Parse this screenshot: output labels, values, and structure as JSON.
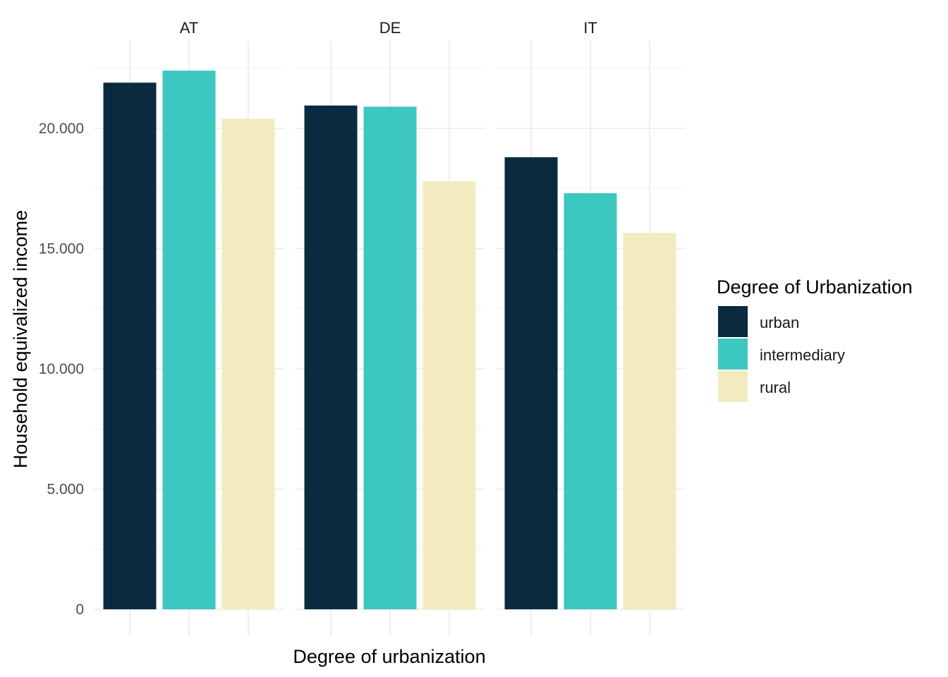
{
  "chart_data": {
    "type": "bar",
    "facets": [
      "AT",
      "DE",
      "IT"
    ],
    "categories": [
      "urban",
      "intermediary",
      "rural"
    ],
    "series": [
      {
        "facet": "AT",
        "values": [
          21900,
          22400,
          20400
        ]
      },
      {
        "facet": "DE",
        "values": [
          20950,
          20900,
          17800
        ]
      },
      {
        "facet": "IT",
        "values": [
          18800,
          17300,
          15650
        ]
      }
    ],
    "xlabel": "Degree of urbanization",
    "ylabel": "Household equivalized income",
    "ylim": [
      0,
      23000
    ],
    "yticks": [
      0,
      5000,
      10000,
      15000,
      20000
    ],
    "ytick_labels": [
      "0",
      "5.000",
      "10.000",
      "15.000",
      "20.000"
    ],
    "grid": true,
    "legend": {
      "title": "Degree of Urbanization",
      "placement": "right",
      "entries": [
        {
          "label": "urban",
          "color": "#0b2a3f"
        },
        {
          "label": "intermediary",
          "color": "#3cc7c0"
        },
        {
          "label": "rural",
          "color": "#f1ebbf"
        }
      ]
    }
  }
}
